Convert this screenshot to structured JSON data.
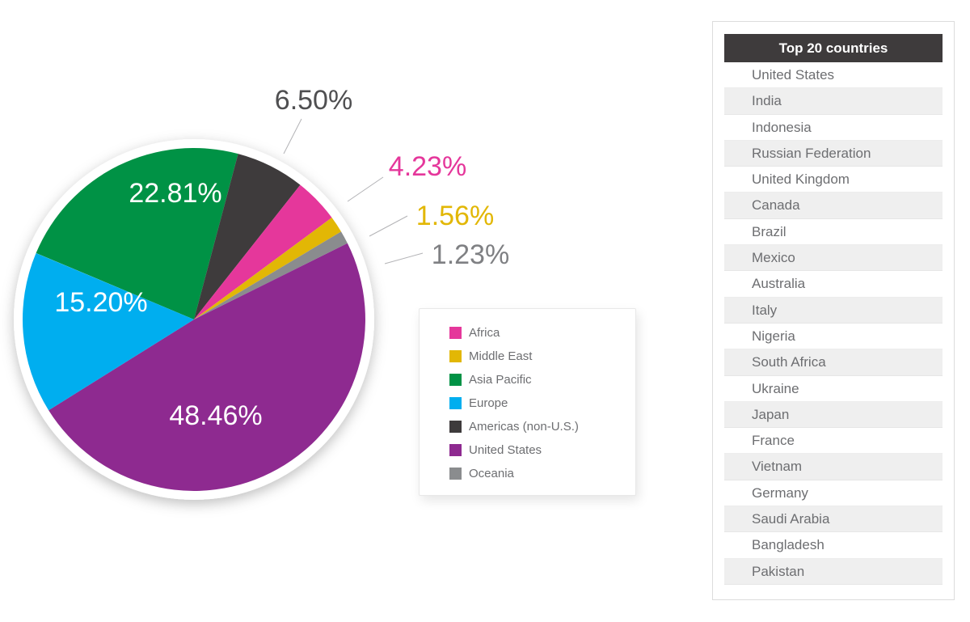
{
  "chart_data": {
    "type": "pie",
    "title": "",
    "start_angle_deg_clockwise_from_top": -67.2,
    "grid": false,
    "legend_position": "right-of-pie",
    "slices": [
      {
        "name": "Asia Pacific",
        "value": 22.81,
        "label": "22.81%",
        "color": "#009245",
        "label_placement": "inside"
      },
      {
        "name": "Americas (non-U.S.)",
        "value": 6.5,
        "label": "6.50%",
        "color": "#3E3B3C",
        "label_placement": "outside"
      },
      {
        "name": "Africa",
        "value": 4.23,
        "label": "4.23%",
        "color": "#E5379B",
        "label_placement": "outside"
      },
      {
        "name": "Middle East",
        "value": 1.56,
        "label": "1.56%",
        "color": "#E2B705",
        "label_placement": "outside"
      },
      {
        "name": "Oceania",
        "value": 1.23,
        "label": "1.23%",
        "color": "#8A8C8E",
        "label_placement": "outside"
      },
      {
        "name": "United States",
        "value": 48.46,
        "label": "48.46%",
        "color": "#8E2A90",
        "label_placement": "inside"
      },
      {
        "name": "Europe",
        "value": 15.2,
        "label": "15.20%",
        "color": "#00AEEF",
        "label_placement": "inside"
      }
    ],
    "legend": {
      "items": [
        {
          "label": "Africa",
          "color": "#E5379B"
        },
        {
          "label": "Middle East",
          "color": "#E2B705"
        },
        {
          "label": "Asia Pacific",
          "color": "#009245"
        },
        {
          "label": "Europe",
          "color": "#00AEEF"
        },
        {
          "label": "Americas (non-U.S.)",
          "color": "#3E3B3C"
        },
        {
          "label": "United States",
          "color": "#8E2A90"
        },
        {
          "label": "Oceania",
          "color": "#8A8C8E"
        }
      ]
    }
  },
  "table": {
    "header": "Top 20 countries",
    "header_bg": "#3E3B3C",
    "stripe_bg": "#EFEFEF",
    "rows": [
      "United States",
      "India",
      "Indonesia",
      "Russian Federation",
      "United Kingdom",
      "Canada",
      "Brazil",
      "Mexico",
      "Australia",
      "Italy",
      "Nigeria",
      "South Africa",
      "Ukraine",
      "Japan",
      "France",
      "Vietnam",
      "Germany",
      "Saudi Arabia",
      "Bangladesh",
      "Pakistan"
    ]
  },
  "colors": {
    "outside_label_dark": "#4F4F51",
    "outside_label_gray": "#7F8083",
    "leader_line": "#B3B3B6",
    "table_text": "#6D6E71"
  }
}
